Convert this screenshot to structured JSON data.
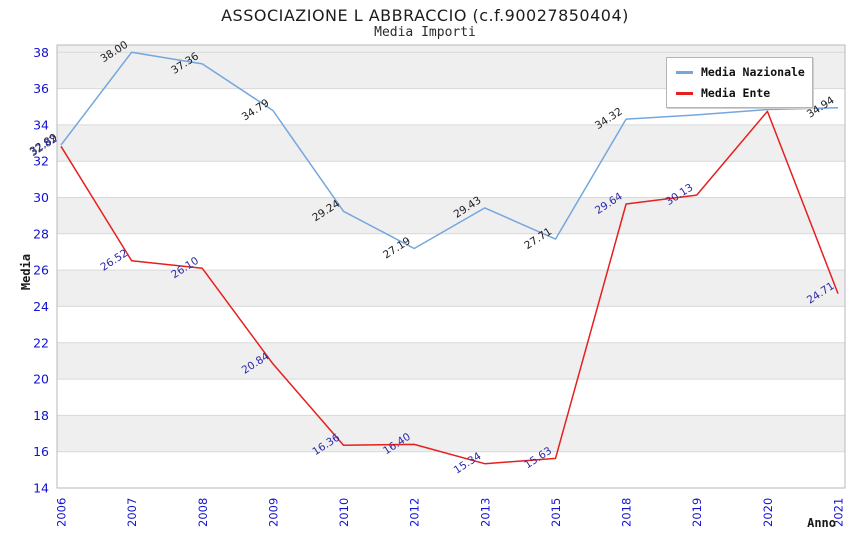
{
  "chart_data": {
    "type": "line",
    "title": "ASSOCIAZIONE L ABBRACCIO (c.f.90027850404)",
    "subtitle": "Media Importi",
    "xlabel": "Anno",
    "ylabel": "Media",
    "categories": [
      "2006",
      "2007",
      "2008",
      "2009",
      "2010",
      "2012",
      "2013",
      "2015",
      "2018",
      "2019",
      "2020",
      "2021"
    ],
    "series": [
      {
        "name": "Media Nazionale",
        "color": "#74a7dd",
        "label_color": "#1c1c24",
        "values": [
          32.89,
          38.0,
          37.36,
          34.79,
          29.24,
          27.19,
          29.43,
          27.71,
          34.32,
          34.55,
          34.85,
          34.94
        ],
        "point_labels": [
          "32.89",
          "38.00",
          "37.36",
          "34.79",
          "29.24",
          "27.19",
          "29.43",
          "27.71",
          "34.32",
          null,
          null,
          "34.94"
        ]
      },
      {
        "name": "Media Ente",
        "color": "#e61f1f",
        "label_color": "#2a2aa8",
        "values": [
          32.82,
          26.52,
          26.1,
          20.84,
          16.36,
          16.4,
          15.34,
          15.63,
          29.64,
          30.13,
          34.75,
          24.71
        ],
        "point_labels": [
          "32.82",
          "26.52",
          "26.10",
          "20.84",
          "16.36",
          "16.40",
          "15.34",
          "15.63",
          "29.64",
          "30.13",
          null,
          "24.71"
        ]
      }
    ],
    "y_ticks": [
      14,
      16,
      18,
      20,
      22,
      24,
      26,
      28,
      30,
      32,
      34,
      36,
      38
    ],
    "ylim": [
      14,
      38.4
    ],
    "grid": "horizontal-bands",
    "legend_position": "top-right",
    "band_color": "#efefef",
    "grid_color": "#d9d9d9",
    "border_color": "#b8b8b8",
    "tick_label_color": "#1212cf"
  }
}
